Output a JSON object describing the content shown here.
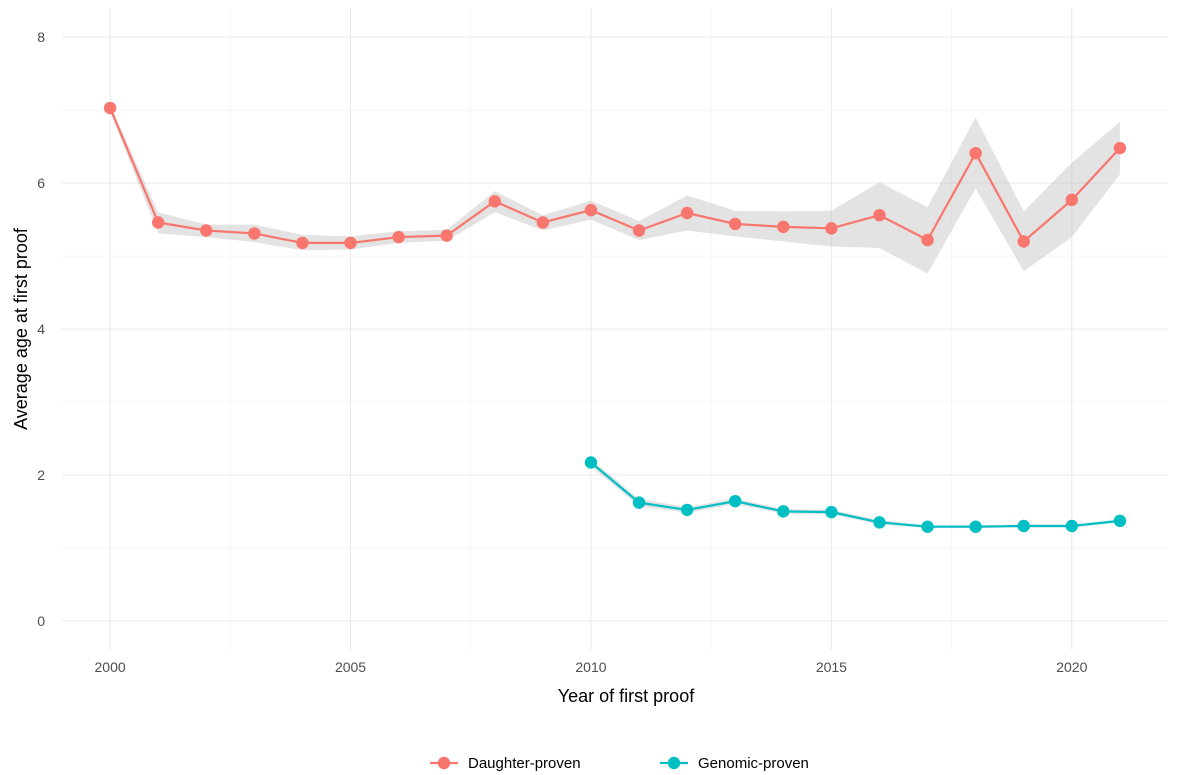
{
  "chart_data": {
    "type": "line",
    "xlabel": "Year of first proof",
    "ylabel": "Average age at first proof",
    "xlim": [
      1999.0,
      2022.0
    ],
    "ylim": [
      -0.4,
      8.4
    ],
    "x_ticks": [
      2000,
      2005,
      2010,
      2015,
      2020
    ],
    "y_ticks": [
      0,
      2,
      4,
      6,
      8
    ],
    "grid": true,
    "legend_position": "bottom",
    "series": [
      {
        "name": "Daughter-proven",
        "color": "#F8766D",
        "x": [
          2000,
          2001,
          2002,
          2003,
          2004,
          2005,
          2006,
          2007,
          2008,
          2009,
          2010,
          2011,
          2012,
          2013,
          2014,
          2015,
          2016,
          2017,
          2018,
          2019,
          2020,
          2021
        ],
        "values": [
          7.03,
          5.46,
          5.35,
          5.31,
          5.18,
          5.18,
          5.26,
          5.28,
          5.75,
          5.46,
          5.63,
          5.35,
          5.59,
          5.44,
          5.4,
          5.38,
          5.56,
          5.22,
          6.41,
          5.2,
          5.77,
          6.48
        ],
        "ci_lower": [
          6.98,
          5.31,
          5.26,
          5.19,
          5.08,
          5.09,
          5.18,
          5.21,
          5.6,
          5.35,
          5.5,
          5.22,
          5.35,
          5.27,
          5.2,
          5.13,
          5.11,
          4.76,
          5.93,
          4.79,
          5.26,
          6.12
        ],
        "ci_upper": [
          7.08,
          5.6,
          5.43,
          5.43,
          5.29,
          5.27,
          5.34,
          5.36,
          5.89,
          5.56,
          5.76,
          5.48,
          5.83,
          5.62,
          5.61,
          5.62,
          6.01,
          5.67,
          6.9,
          5.61,
          6.28,
          6.84
        ]
      },
      {
        "name": "Genomic-proven",
        "color": "#00BFC4",
        "x": [
          2010,
          2011,
          2012,
          2013,
          2014,
          2015,
          2016,
          2017,
          2018,
          2019,
          2020,
          2021
        ],
        "values": [
          2.17,
          1.62,
          1.52,
          1.64,
          1.5,
          1.49,
          1.35,
          1.29,
          1.29,
          1.3,
          1.3,
          1.37
        ],
        "ci_lower": [
          2.12,
          1.57,
          1.48,
          1.6,
          1.47,
          1.46,
          1.32,
          1.27,
          1.27,
          1.28,
          1.28,
          1.35
        ],
        "ci_upper": [
          2.22,
          1.67,
          1.56,
          1.68,
          1.53,
          1.52,
          1.38,
          1.31,
          1.31,
          1.32,
          1.32,
          1.39
        ]
      }
    ]
  }
}
